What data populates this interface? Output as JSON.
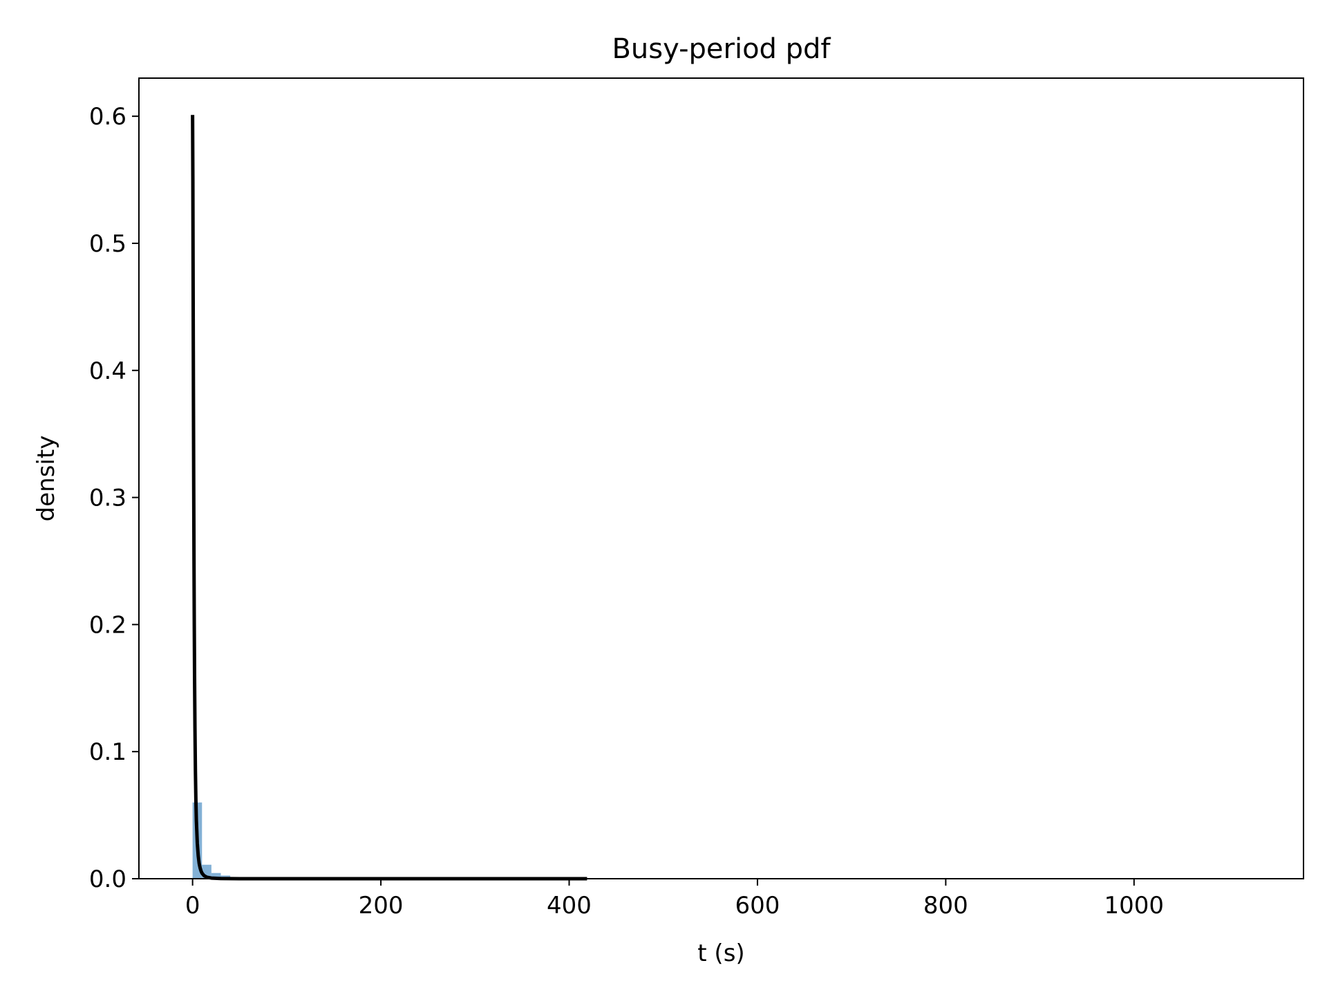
{
  "chart_data": {
    "type": "bar",
    "title": "Busy-period pdf",
    "xlabel": "t (s)",
    "ylabel": "density",
    "xlim": [
      -57,
      1180
    ],
    "ylim": [
      0,
      0.63
    ],
    "xticks": [
      0,
      200,
      400,
      600,
      800,
      1000
    ],
    "xtick_labels": [
      "0",
      "200",
      "400",
      "600",
      "800",
      "1000"
    ],
    "yticks": [
      0.0,
      0.1,
      0.2,
      0.3,
      0.4,
      0.5,
      0.6
    ],
    "ytick_labels": [
      "0.0",
      "0.1",
      "0.2",
      "0.3",
      "0.4",
      "0.5",
      "0.6"
    ],
    "grid": false,
    "series": [
      {
        "type": "histogram",
        "color": "#76a8d1",
        "bin_edges": [
          0,
          10,
          20,
          30,
          40,
          50,
          60,
          70,
          80,
          90,
          100,
          110,
          120,
          130,
          140,
          150,
          160,
          170,
          180,
          190,
          200,
          210,
          220,
          230,
          240,
          250,
          260,
          270,
          280,
          290,
          300,
          310,
          320,
          330,
          340,
          350,
          360,
          370,
          380,
          390,
          400,
          410,
          420,
          430,
          440,
          450,
          460,
          470,
          480,
          490,
          500,
          510,
          520,
          530,
          540,
          550,
          560,
          570,
          580,
          590,
          600,
          610,
          620,
          630,
          640,
          650,
          660,
          670,
          680,
          690,
          700,
          710,
          720,
          730,
          740,
          750,
          760,
          770,
          780,
          790,
          800,
          810,
          820,
          830,
          840,
          850,
          860,
          870,
          880,
          890,
          900,
          910,
          920,
          930,
          940,
          950,
          960,
          970,
          980,
          990,
          1000,
          1010,
          1020,
          1030,
          1040,
          1050,
          1060,
          1070,
          1080,
          1090,
          1100,
          1110,
          1120,
          1130
        ],
        "values": [
          0.06,
          0.011,
          0.0045,
          0.0025,
          0.0012,
          0.0008,
          0.0006,
          0.0004,
          0.0003,
          0.0003,
          0.0002,
          0.0002,
          0.0002,
          0.0001,
          0.0001,
          0.0001,
          0.0001,
          0.0001,
          0.0001,
          0.0001,
          0.0001,
          0.0001,
          0.0001,
          0.0001,
          0.0001,
          0.0001,
          0.0001,
          0.0001,
          0.0001,
          0.0001,
          0.0001,
          0.0001,
          0.0001,
          0.0001,
          0.0001,
          0.0001,
          0.0001,
          0.0001,
          0.0001,
          0.0001,
          0.0001,
          0.0001,
          0.0001,
          0.0001,
          0.0001,
          0.0001,
          0.0001,
          0.0001,
          0.0001,
          0.0001,
          0.0001,
          0.0001,
          0.0001,
          0.0001,
          0.0001,
          0.0001,
          0.0001,
          0.0001,
          0.0001,
          0.0001,
          0.0001,
          0.0001,
          0.0001,
          0.0001,
          0.0001,
          0.0001,
          0.0001,
          0.0001,
          0.0001,
          0.0001,
          0.0001,
          0.0001,
          0.0001,
          0.0001,
          0.0001,
          0.0001,
          0.0001,
          0.0001,
          0.0001,
          0.0001,
          0.0001,
          0.0001,
          0.0001,
          0.0001,
          0.0001,
          0.0001,
          0.0001,
          0.0001,
          0.0001,
          0.0001,
          0.0001,
          0.0001,
          0.0001,
          0.0001,
          0.0001,
          0.0001,
          0.0001,
          0.0001,
          0.0001,
          0.0001,
          0.0001,
          0.0001,
          0.0001,
          0.0001,
          0.0001,
          0.0001,
          0.0001,
          0.0001,
          0.0001,
          0.0001,
          0.0001,
          0.0001,
          0.0001
        ]
      },
      {
        "type": "line",
        "color": "#000000",
        "x": [
          0.0,
          0.3,
          0.6,
          0.9,
          1.2,
          1.5,
          1.8,
          2.1,
          2.5,
          3.0,
          3.5,
          4.0,
          5.0,
          6.0,
          7.0,
          8.0,
          9.0,
          10.0,
          12.0,
          15.0,
          20.0,
          30.0,
          50.0,
          100.0,
          200.0,
          300.0,
          419.0
        ],
        "y": [
          0.601,
          0.55,
          0.46,
          0.38,
          0.31,
          0.25,
          0.2,
          0.16,
          0.12,
          0.085,
          0.062,
          0.046,
          0.028,
          0.018,
          0.012,
          0.0085,
          0.006,
          0.0044,
          0.0025,
          0.0012,
          0.0005,
          0.00015,
          3e-05,
          0.0,
          0.0,
          0.0,
          0.0
        ]
      }
    ]
  }
}
